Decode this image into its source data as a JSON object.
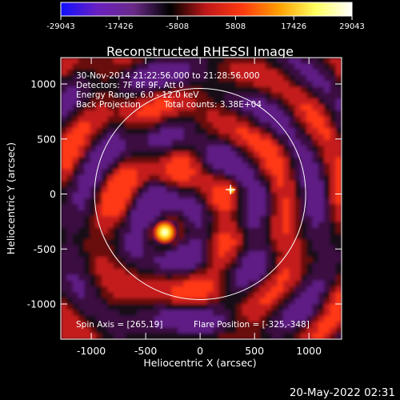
{
  "colorbar": {
    "ticks": [
      "-29043",
      "-17426",
      "-5808",
      "5808",
      "17426",
      "29043"
    ],
    "range": [
      -29043,
      29043
    ],
    "colors": [
      "#1010ff",
      "#6a1fc0",
      "#6a2a88",
      "#000000",
      "#c01818",
      "#ff3a10",
      "#ffa000",
      "#ffff60",
      "#ffffff"
    ]
  },
  "chart_data": {
    "type": "heatmap",
    "title": "Reconstructed RHESSI Image",
    "xlabel": "Heliocentric X (arcsec)",
    "ylabel": "Heliocentric Y (arcsec)",
    "xlim": [
      -1280,
      1300
    ],
    "ylim": [
      -1320,
      1240
    ],
    "xticks": [
      "-1000",
      "-500",
      "0",
      "500",
      "1000"
    ],
    "yticks": [
      "1000",
      "500",
      "0",
      "-500",
      "-1000"
    ],
    "xtick_values": [
      -1000,
      -500,
      0,
      500,
      1000
    ],
    "ytick_values": [
      1000,
      500,
      0,
      -500,
      -1000
    ],
    "solar_radius_arcsec": 970,
    "source_peak": [
      -325,
      -348
    ],
    "marker_position": [
      280,
      40
    ],
    "annotations": {
      "time_range": "30-Nov-2014 21:22:56.000 to 21:28:56.000",
      "detectors": "Detectors: 7F 8F 9F, Att 0",
      "energy": "Energy Range: 6.0 - 12.0 keV",
      "method": "Back Projection",
      "counts": "Total counts: 3.38E+04",
      "spin_axis": "Spin Axis = [265,19]",
      "flare_position": "Flare Position = [-325,-348]"
    }
  },
  "footer": {
    "timestamp": "20-May-2022 02:31"
  }
}
